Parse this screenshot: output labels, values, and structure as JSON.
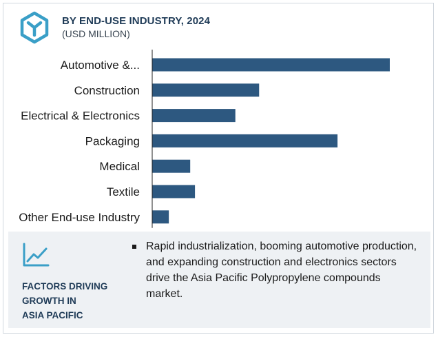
{
  "header": {
    "title": "BY END-USE INDUSTRY, 2024",
    "subtitle": "(USD MILLION)",
    "logo_icon": "hexagon-y-logo-icon",
    "accent_color": "#3a9fc7"
  },
  "chart_data": {
    "type": "bar",
    "orientation": "horizontal",
    "categories": [
      "Automotive &...",
      "Construction",
      "Electrical & Electronics",
      "Packaging",
      "Medical",
      "Textile",
      "Other End-use Industry"
    ],
    "values": [
      100,
      45,
      35,
      78,
      16,
      18,
      7
    ],
    "value_scale": "relative (no axis values printed)",
    "xlim": [
      0,
      100
    ],
    "title": "BY END-USE INDUSTRY, 2024",
    "subtitle": "(USD MILLION)",
    "grid": false,
    "legend": "none",
    "bar_color": "#2d5880",
    "axis_color": "#222222"
  },
  "factors": {
    "icon": "trend-line-icon",
    "label_lines": [
      "FACTORS DRIVING",
      "GROWTH IN",
      "ASIA PACIFIC"
    ],
    "bullets": [
      "Rapid industrialization, booming automotive production, and expanding construction and electronics sectors drive the Asia Pacific Polypropylene compounds market."
    ]
  }
}
